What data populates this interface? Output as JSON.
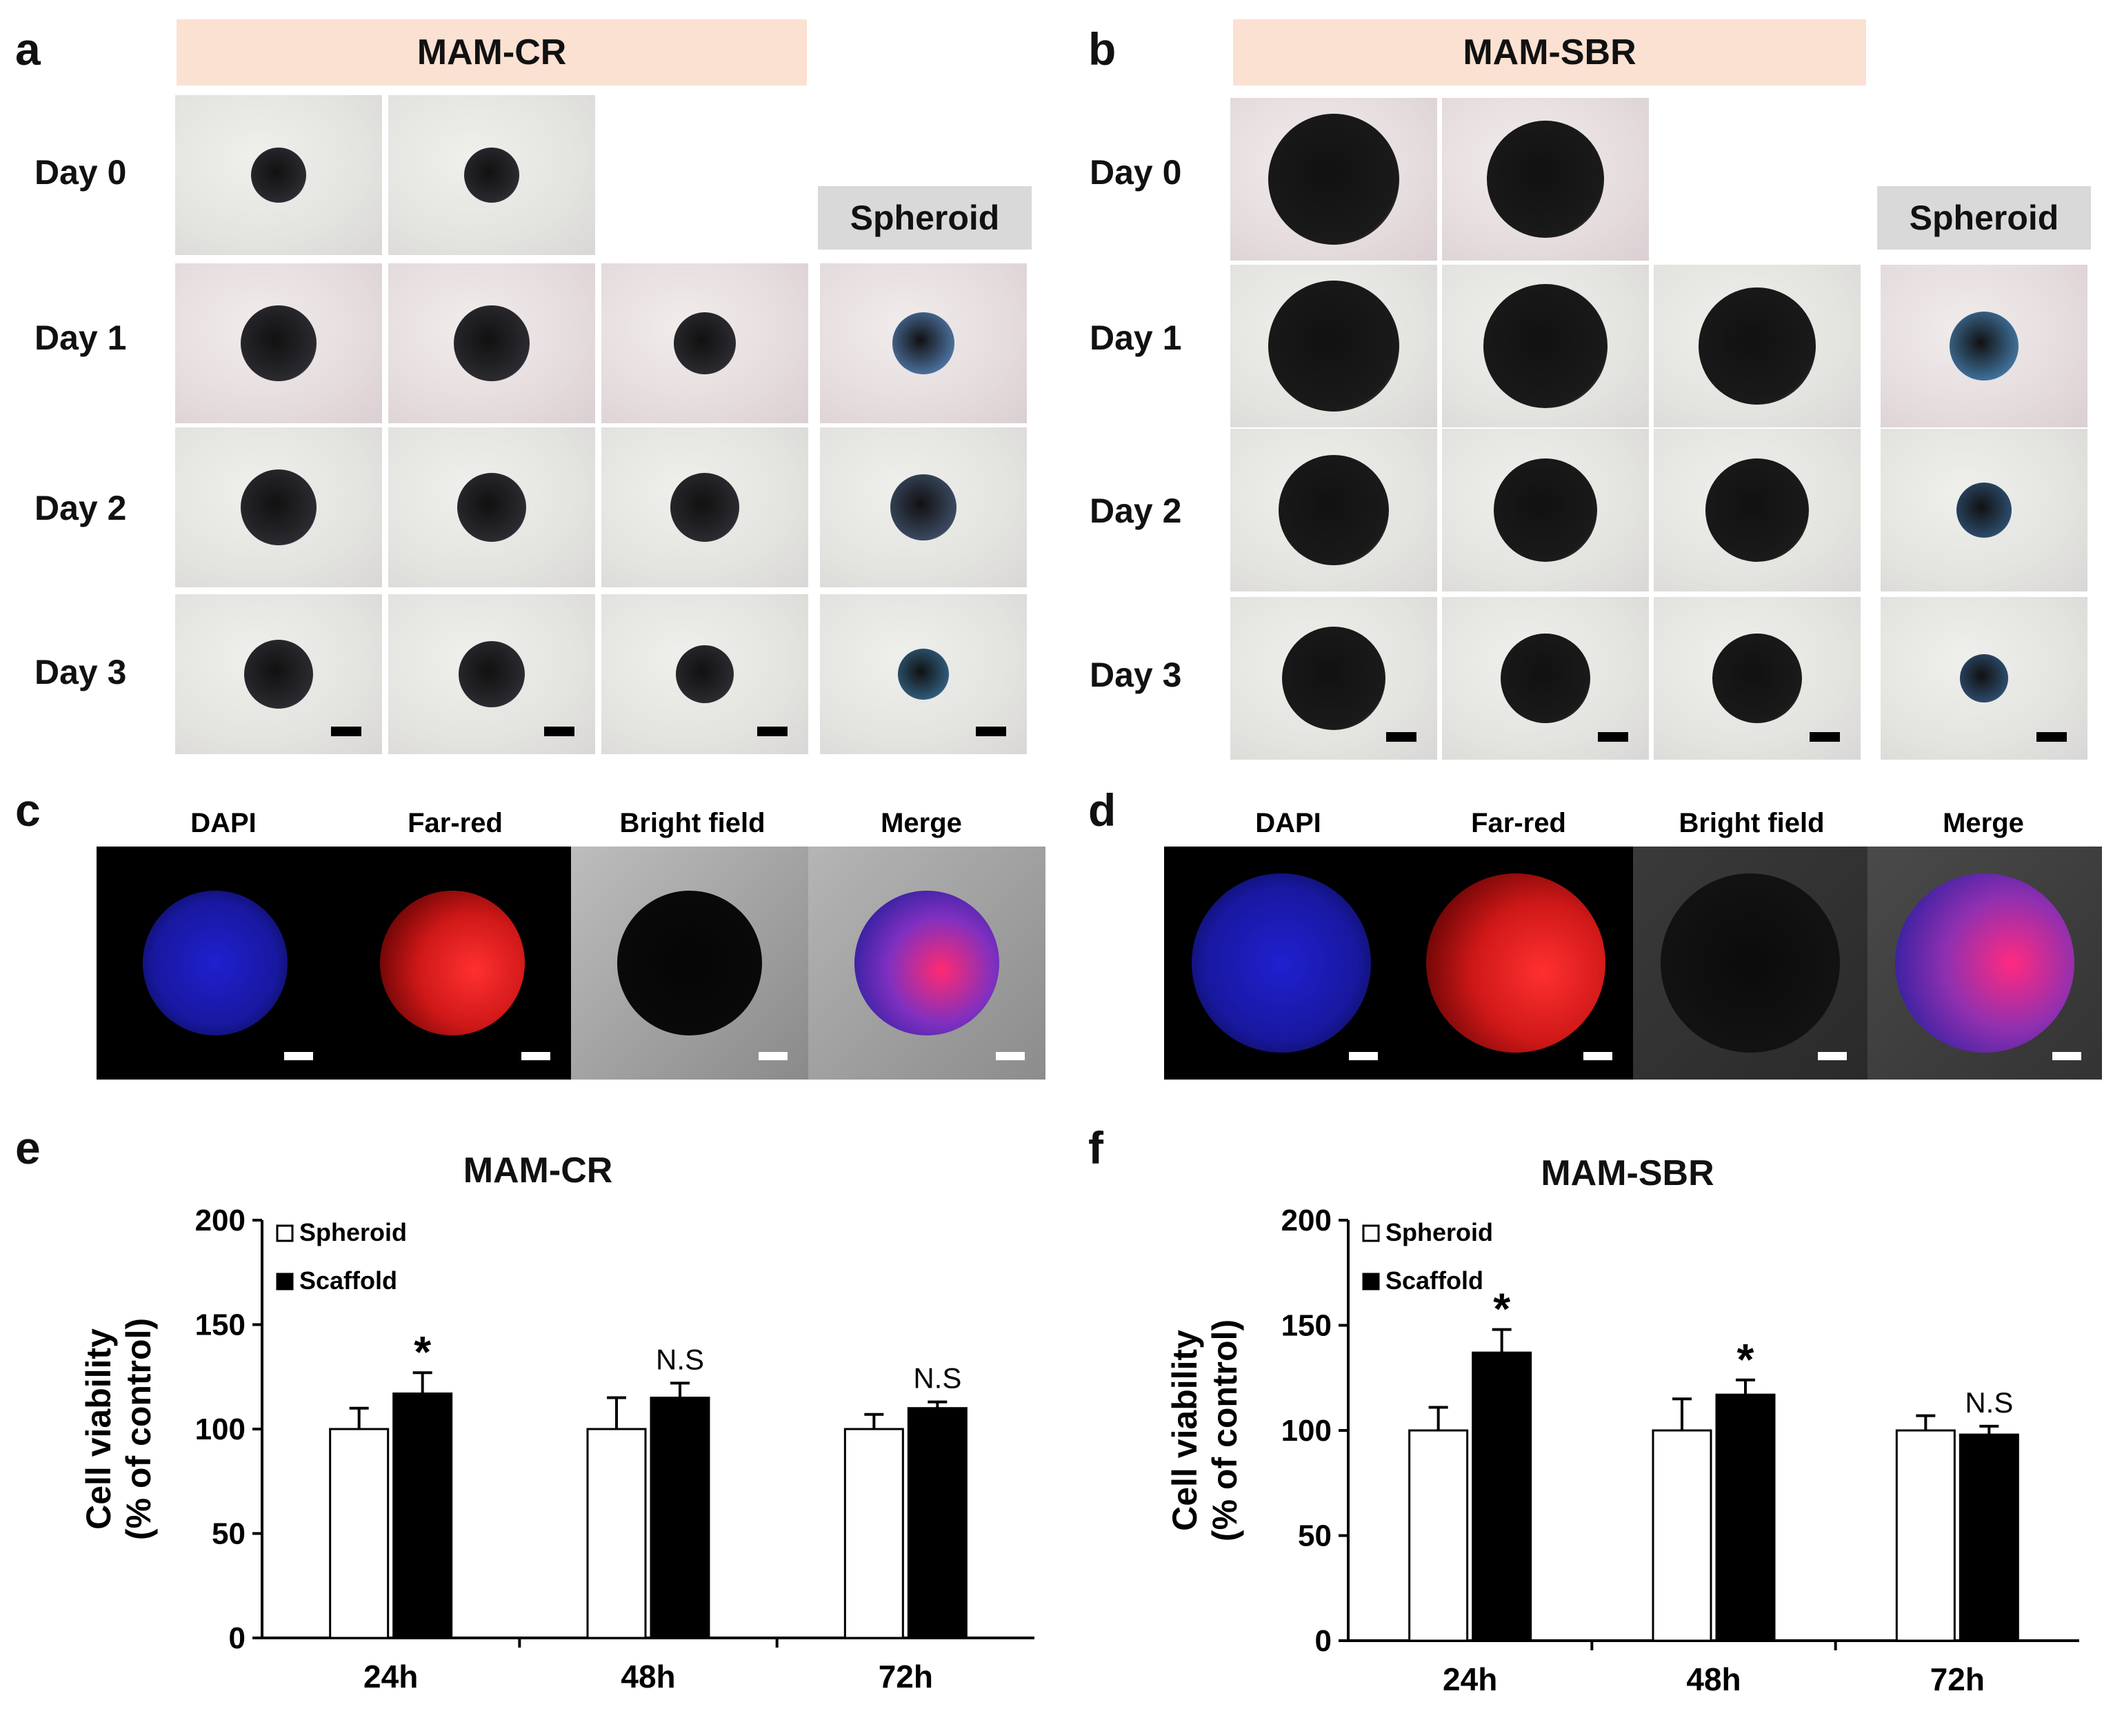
{
  "panels": {
    "a": {
      "letter": "a",
      "header": "MAM-CR",
      "spheroid_label": "Spheroid"
    },
    "b": {
      "letter": "b",
      "header": "MAM-SBR",
      "spheroid_label": "Spheroid"
    },
    "c": {
      "letter": "c"
    },
    "d": {
      "letter": "d"
    },
    "e": {
      "letter": "e"
    },
    "f": {
      "letter": "f"
    }
  },
  "day_labels": [
    "Day 0",
    "Day 1",
    "Day 2",
    "Day 3"
  ],
  "fluor_labels": {
    "dapi": "DAPI",
    "farred": "Far-red",
    "bright": "Bright field",
    "merge": "Merge"
  },
  "colors": {
    "dapi": "#1a1aff",
    "farred": "#ff2020",
    "bright": "#111111",
    "merge": "#111111",
    "header_bg": "#fbe1d2",
    "spheroid_bg": "#d9d9d9"
  },
  "chart_data": [
    {
      "type": "bar",
      "title": "MAM-CR",
      "ylabel_line1": "Cell viability",
      "ylabel_line2": "(% of control)",
      "categories": [
        "24h",
        "48h",
        "72h"
      ],
      "ylim": [
        0,
        200
      ],
      "yticks": [
        "0",
        "50",
        "100",
        "150",
        "200"
      ],
      "series": [
        {
          "name": "Spheroid",
          "values": [
            100,
            100,
            100
          ],
          "errors": [
            10,
            15,
            7
          ],
          "fill": "#ffffff"
        },
        {
          "name": "Scaffold",
          "values": [
            117,
            115,
            110
          ],
          "errors": [
            10,
            7,
            3
          ],
          "fill": "#000000"
        }
      ],
      "annotations": [
        "*",
        "N.S",
        "N.S"
      ],
      "legend": "top-left"
    },
    {
      "type": "bar",
      "title": "MAM-SBR",
      "ylabel_line1": "Cell viability",
      "ylabel_line2": "(% of control)",
      "categories": [
        "24h",
        "48h",
        "72h"
      ],
      "ylim": [
        0,
        200
      ],
      "yticks": [
        "0",
        "50",
        "100",
        "150",
        "200"
      ],
      "series": [
        {
          "name": "Spheroid",
          "values": [
            100,
            100,
            100
          ],
          "errors": [
            11,
            15,
            7
          ],
          "fill": "#ffffff"
        },
        {
          "name": "Scaffold",
          "values": [
            137,
            117,
            98
          ],
          "errors": [
            11,
            7,
            4
          ],
          "fill": "#000000"
        }
      ],
      "annotations": [
        "*",
        "*",
        "N.S"
      ],
      "legend": "top-left"
    }
  ]
}
